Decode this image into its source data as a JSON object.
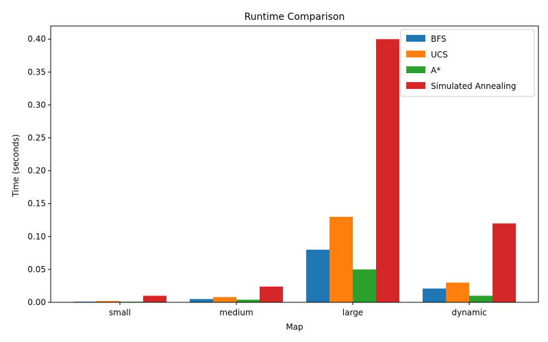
{
  "chart_data": {
    "type": "bar",
    "title": "Runtime Comparison",
    "xlabel": "Map",
    "ylabel": "Time (seconds)",
    "categories": [
      "small",
      "medium",
      "large",
      "dynamic"
    ],
    "ylim": [
      0,
      0.42
    ],
    "yticks": [
      0.0,
      0.05,
      0.1,
      0.15,
      0.2,
      0.25,
      0.3,
      0.35,
      0.4
    ],
    "ytick_labels": [
      "0.00",
      "0.05",
      "0.10",
      "0.15",
      "0.20",
      "0.25",
      "0.30",
      "0.35",
      "0.40"
    ],
    "grid": false,
    "legend_position": "top-right",
    "series": [
      {
        "name": "BFS",
        "color": "#1f77b4",
        "values": [
          0.001,
          0.005,
          0.08,
          0.021
        ]
      },
      {
        "name": "UCS",
        "color": "#ff7f0e",
        "values": [
          0.002,
          0.008,
          0.13,
          0.03
        ]
      },
      {
        "name": "A*",
        "color": "#2ca02c",
        "values": [
          0.001,
          0.004,
          0.05,
          0.01
        ]
      },
      {
        "name": "Simulated Annealing",
        "color": "#d62728",
        "values": [
          0.01,
          0.024,
          0.4,
          0.12
        ]
      }
    ]
  }
}
